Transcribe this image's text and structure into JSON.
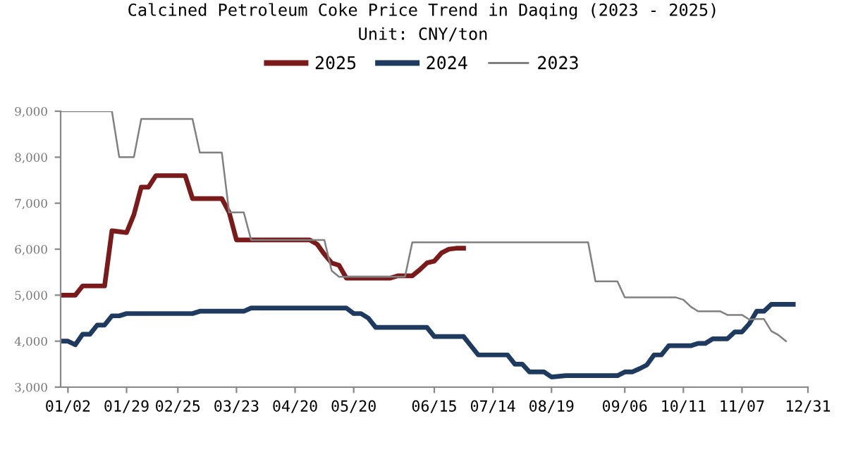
{
  "chart_data": {
    "type": "line",
    "title": "Calcined Petroleum Coke Price Trend in Daqing (2023 - 2025)",
    "subtitle": "Unit: CNY/ton",
    "categories": [
      null,
      "01/02",
      null,
      null,
      null,
      null,
      null,
      null,
      null,
      "01/29",
      null,
      null,
      null,
      null,
      null,
      null,
      "02/25",
      null,
      null,
      null,
      null,
      null,
      null,
      null,
      "03/23",
      null,
      null,
      null,
      null,
      null,
      null,
      null,
      "04/20",
      null,
      null,
      null,
      null,
      null,
      null,
      null,
      "05/20",
      null,
      null,
      null,
      null,
      null,
      null,
      null,
      null,
      null,
      null,
      "06/15",
      null,
      null,
      null,
      null,
      null,
      null,
      null,
      "07/14",
      null,
      null,
      null,
      null,
      null,
      null,
      null,
      "08/19",
      null,
      null,
      null,
      null,
      null,
      null,
      null,
      null,
      null,
      "09/06",
      null,
      null,
      null,
      null,
      null,
      null,
      null,
      "10/11",
      null,
      null,
      null,
      null,
      null,
      null,
      null,
      "11/07",
      null,
      null,
      null,
      null,
      null,
      null,
      null,
      null,
      "12/31"
    ],
    "ylim": [
      3000,
      9000
    ],
    "yticks": [
      {
        "value": 3000,
        "label": "3,000"
      },
      {
        "value": 4000,
        "label": "4,000"
      },
      {
        "value": 5000,
        "label": "5,000"
      },
      {
        "value": 6000,
        "label": "6,000"
      },
      {
        "value": 7000,
        "label": "7,000"
      },
      {
        "value": 8000,
        "label": "8,000"
      },
      {
        "value": 9000,
        "label": "9,000"
      }
    ],
    "grid": false,
    "legend": "top",
    "marker": "none",
    "line_style": "solid",
    "series": [
      {
        "name": "2025",
        "color": "#7b1a1a",
        "values": [
          5000,
          5000,
          5000,
          5200,
          5200,
          5200,
          5200,
          6400,
          6380,
          6360,
          6750,
          7350,
          7350,
          7600,
          7600,
          7600,
          7600,
          7600,
          7100,
          7100,
          7100,
          7100,
          7100,
          6800,
          6200,
          6200,
          6200,
          6200,
          6200,
          6200,
          6200,
          6200,
          6200,
          6200,
          6200,
          6110,
          5890,
          5700,
          5650,
          5370,
          5370,
          5370,
          5370,
          5370,
          5370,
          5370,
          5420,
          5420,
          5420,
          5550,
          5700,
          5740,
          5920,
          6000,
          6020,
          6020,
          null,
          null,
          null,
          null,
          null,
          null,
          null,
          null,
          null,
          null,
          null,
          null,
          null,
          null,
          null,
          null,
          null,
          null,
          null,
          null,
          null,
          null,
          null,
          null,
          null,
          null,
          null,
          null,
          null,
          null,
          null,
          null,
          null,
          null,
          null,
          null,
          null,
          null,
          null,
          null,
          null,
          null,
          null,
          null,
          null,
          null,
          null
        ]
      },
      {
        "name": "2024",
        "color": "#1f3a5f",
        "values": [
          4000,
          4000,
          3920,
          4150,
          4150,
          4350,
          4350,
          4550,
          4550,
          4600,
          4600,
          4600,
          4600,
          4600,
          4600,
          4600,
          4600,
          4600,
          4600,
          4650,
          4650,
          4650,
          4650,
          4650,
          4650,
          4650,
          4720,
          4720,
          4720,
          4720,
          4720,
          4720,
          4720,
          4720,
          4720,
          4720,
          4720,
          4720,
          4720,
          4720,
          4600,
          4600,
          4500,
          4300,
          4300,
          4300,
          4300,
          4300,
          4300,
          4300,
          4300,
          4100,
          4100,
          4100,
          4100,
          4100,
          3900,
          3700,
          3700,
          3700,
          3700,
          3700,
          3500,
          3500,
          3330,
          3330,
          3330,
          3220,
          3235,
          3250,
          3250,
          3250,
          3250,
          3250,
          3250,
          3250,
          3250,
          3330,
          3330,
          3400,
          3480,
          3700,
          3700,
          3900,
          3900,
          3900,
          3900,
          3950,
          3950,
          4050,
          4050,
          4050,
          4200,
          4200,
          4380,
          4650,
          4650,
          4800,
          4800,
          4800,
          4800,
          null,
          null
        ]
      },
      {
        "name": "2023",
        "color": "#808080",
        "values": [
          9000,
          9000,
          9000,
          9000,
          9000,
          9000,
          9000,
          9000,
          8000,
          8000,
          8000,
          8830,
          8830,
          8830,
          8830,
          8830,
          8830,
          8830,
          8830,
          8100,
          8100,
          8100,
          8100,
          6800,
          6800,
          6800,
          6200,
          6200,
          6200,
          6200,
          6200,
          6200,
          6200,
          6200,
          6200,
          6200,
          6200,
          5530,
          5400,
          5400,
          5400,
          5400,
          5400,
          5400,
          5400,
          5400,
          5400,
          5400,
          6150,
          6150,
          6150,
          6150,
          6150,
          6150,
          6150,
          6150,
          6150,
          6150,
          6150,
          6150,
          6150,
          6150,
          6150,
          6150,
          6150,
          6150,
          6150,
          6150,
          6150,
          6150,
          6150,
          6150,
          6150,
          5300,
          5300,
          5300,
          5300,
          4950,
          4950,
          4950,
          4950,
          4950,
          4950,
          4950,
          4950,
          4900,
          4750,
          4650,
          4650,
          4650,
          4650,
          4570,
          4570,
          4570,
          4470,
          4480,
          4480,
          4220,
          4130,
          4000,
          null,
          null,
          null
        ]
      }
    ]
  }
}
